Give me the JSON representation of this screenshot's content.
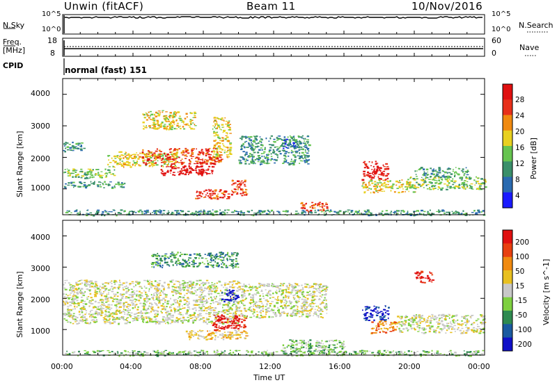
{
  "header": {
    "station": "Unwin (fitACF)",
    "beam": "Beam 11",
    "date": "10/Nov/2016"
  },
  "strips": {
    "nsky_label": "N.Sky",
    "nsky_top": "10^5",
    "nsky_bottom": "10^0",
    "nsearch_label": "N.Search",
    "nsearch_top": "10^5",
    "nsearch_bottom": "10^0",
    "freq_label": "Freq.",
    "freq_unit": "[MHz]",
    "freq_top": "18",
    "freq_bottom": "8",
    "nave_label": "Nave",
    "nave_top": "60",
    "nave_bottom": "0",
    "cpid_label": "CPID",
    "cpid_value": "normal (fast) 151"
  },
  "axes": {
    "ylabel": "Slant Range [km]",
    "y_ticks": [
      "1000",
      "2000",
      "3000",
      "4000"
    ],
    "x_ticks": [
      "00:00",
      "04:00",
      "08:00",
      "12:00",
      "16:00",
      "20:00",
      "00:00"
    ],
    "xlabel": "Time UT"
  },
  "power_scale": {
    "label": "Power [dB]",
    "ticks": [
      "4",
      "8",
      "12",
      "16",
      "20",
      "24",
      "28"
    ]
  },
  "velocity_scale": {
    "label": "Velocity [m s^-1]",
    "ticks": [
      "200",
      "100",
      "50",
      "15",
      "-15",
      "-50",
      "-100",
      "-200"
    ]
  },
  "colors": {
    "power": [
      "#1a1aff",
      "#2a6ab0",
      "#3a8f6a",
      "#66c450",
      "#e8d020",
      "#f08a10",
      "#e8301a",
      "#e01010"
    ],
    "velocity": [
      "#1010c8",
      "#1a5aa0",
      "#2e8a50",
      "#7ed040",
      "#c8c8c8",
      "#e8c020",
      "#f08a10",
      "#e84010",
      "#e01010"
    ]
  },
  "chart_data": [
    {
      "type": "heatmap",
      "title": "Power",
      "x_range_hours": [
        0,
        24
      ],
      "y_range_km": [
        180,
        4500
      ],
      "colorbar_label": "Power [dB]",
      "colorbar_ticks": [
        4,
        8,
        12,
        16,
        20,
        24,
        28
      ],
      "features": [
        {
          "t": [
            0.0,
            3.0
          ],
          "r": [
            1350,
            1650
          ],
          "level": 3
        },
        {
          "t": [
            0.0,
            3.5
          ],
          "r": [
            1050,
            1250
          ],
          "level": 2
        },
        {
          "t": [
            0.0,
            1.2
          ],
          "r": [
            2200,
            2500
          ],
          "level": 2
        },
        {
          "t": [
            2.5,
            6.5
          ],
          "r": [
            1700,
            2200
          ],
          "level": 4
        },
        {
          "t": [
            4.5,
            9.0
          ],
          "r": [
            1800,
            2300
          ],
          "level": 6
        },
        {
          "t": [
            5.5,
            8.5
          ],
          "r": [
            1450,
            1750
          ],
          "level": 7
        },
        {
          "t": [
            6.5,
            8.5
          ],
          "r": [
            1500,
            1650
          ],
          "level": 8
        },
        {
          "t": [
            7.5,
            9.5
          ],
          "r": [
            700,
            1000
          ],
          "level": 6
        },
        {
          "t": [
            9.5,
            10.5
          ],
          "r": [
            800,
            1300
          ],
          "level": 6
        },
        {
          "t": [
            4.5,
            7.5
          ],
          "r": [
            2900,
            3500
          ],
          "level": 4
        },
        {
          "t": [
            8.5,
            9.5
          ],
          "r": [
            2000,
            3300
          ],
          "level": 4
        },
        {
          "t": [
            10.0,
            14.0
          ],
          "r": [
            1800,
            2700
          ],
          "level": 2
        },
        {
          "t": [
            12.5,
            13.5
          ],
          "r": [
            2300,
            2600
          ],
          "level": 1
        },
        {
          "t": [
            13.5,
            15.0
          ],
          "r": [
            300,
            600
          ],
          "level": 6
        },
        {
          "t": [
            17.0,
            18.5
          ],
          "r": [
            1300,
            1900
          ],
          "level": 7
        },
        {
          "t": [
            17.0,
            20.0
          ],
          "r": [
            900,
            1300
          ],
          "level": 4
        },
        {
          "t": [
            19.5,
            24.0
          ],
          "r": [
            1000,
            1400
          ],
          "level": 3
        },
        {
          "t": [
            20.0,
            23.0
          ],
          "r": [
            1400,
            1700
          ],
          "level": 2
        },
        {
          "t": [
            0.0,
            24.0
          ],
          "r": [
            180,
            350
          ],
          "level": 2
        }
      ]
    },
    {
      "type": "heatmap",
      "title": "Velocity",
      "x_range_hours": [
        0,
        24
      ],
      "y_range_km": [
        180,
        4500
      ],
      "colorbar_label": "Velocity [m s^-1]",
      "colorbar_ticks": [
        200,
        100,
        50,
        15,
        -15,
        -50,
        -100,
        -200
      ],
      "features": [
        {
          "t": [
            0.0,
            10.0
          ],
          "r": [
            1200,
            2600
          ],
          "level": 4
        },
        {
          "t": [
            7.0,
            10.5
          ],
          "r": [
            700,
            1000
          ],
          "level": 5
        },
        {
          "t": [
            8.5,
            10.5
          ],
          "r": [
            1000,
            1500
          ],
          "level": 8
        },
        {
          "t": [
            9.0,
            10.0
          ],
          "r": [
            1900,
            2300
          ],
          "level": 0
        },
        {
          "t": [
            5.0,
            10.0
          ],
          "r": [
            3000,
            3500
          ],
          "level": 2
        },
        {
          "t": [
            10.0,
            15.0
          ],
          "r": [
            1400,
            2500
          ],
          "level": 4
        },
        {
          "t": [
            12.5,
            16.0
          ],
          "r": [
            250,
            700
          ],
          "level": 3
        },
        {
          "t": [
            17.0,
            18.5
          ],
          "r": [
            1300,
            1800
          ],
          "level": 0
        },
        {
          "t": [
            17.5,
            19.0
          ],
          "r": [
            900,
            1300
          ],
          "level": 6
        },
        {
          "t": [
            19.0,
            24.0
          ],
          "r": [
            900,
            1500
          ],
          "level": 4
        },
        {
          "t": [
            20.0,
            21.0
          ],
          "r": [
            2500,
            2900
          ],
          "level": 8
        },
        {
          "t": [
            0.0,
            24.0
          ],
          "r": [
            180,
            350
          ],
          "level": 3
        }
      ]
    }
  ]
}
